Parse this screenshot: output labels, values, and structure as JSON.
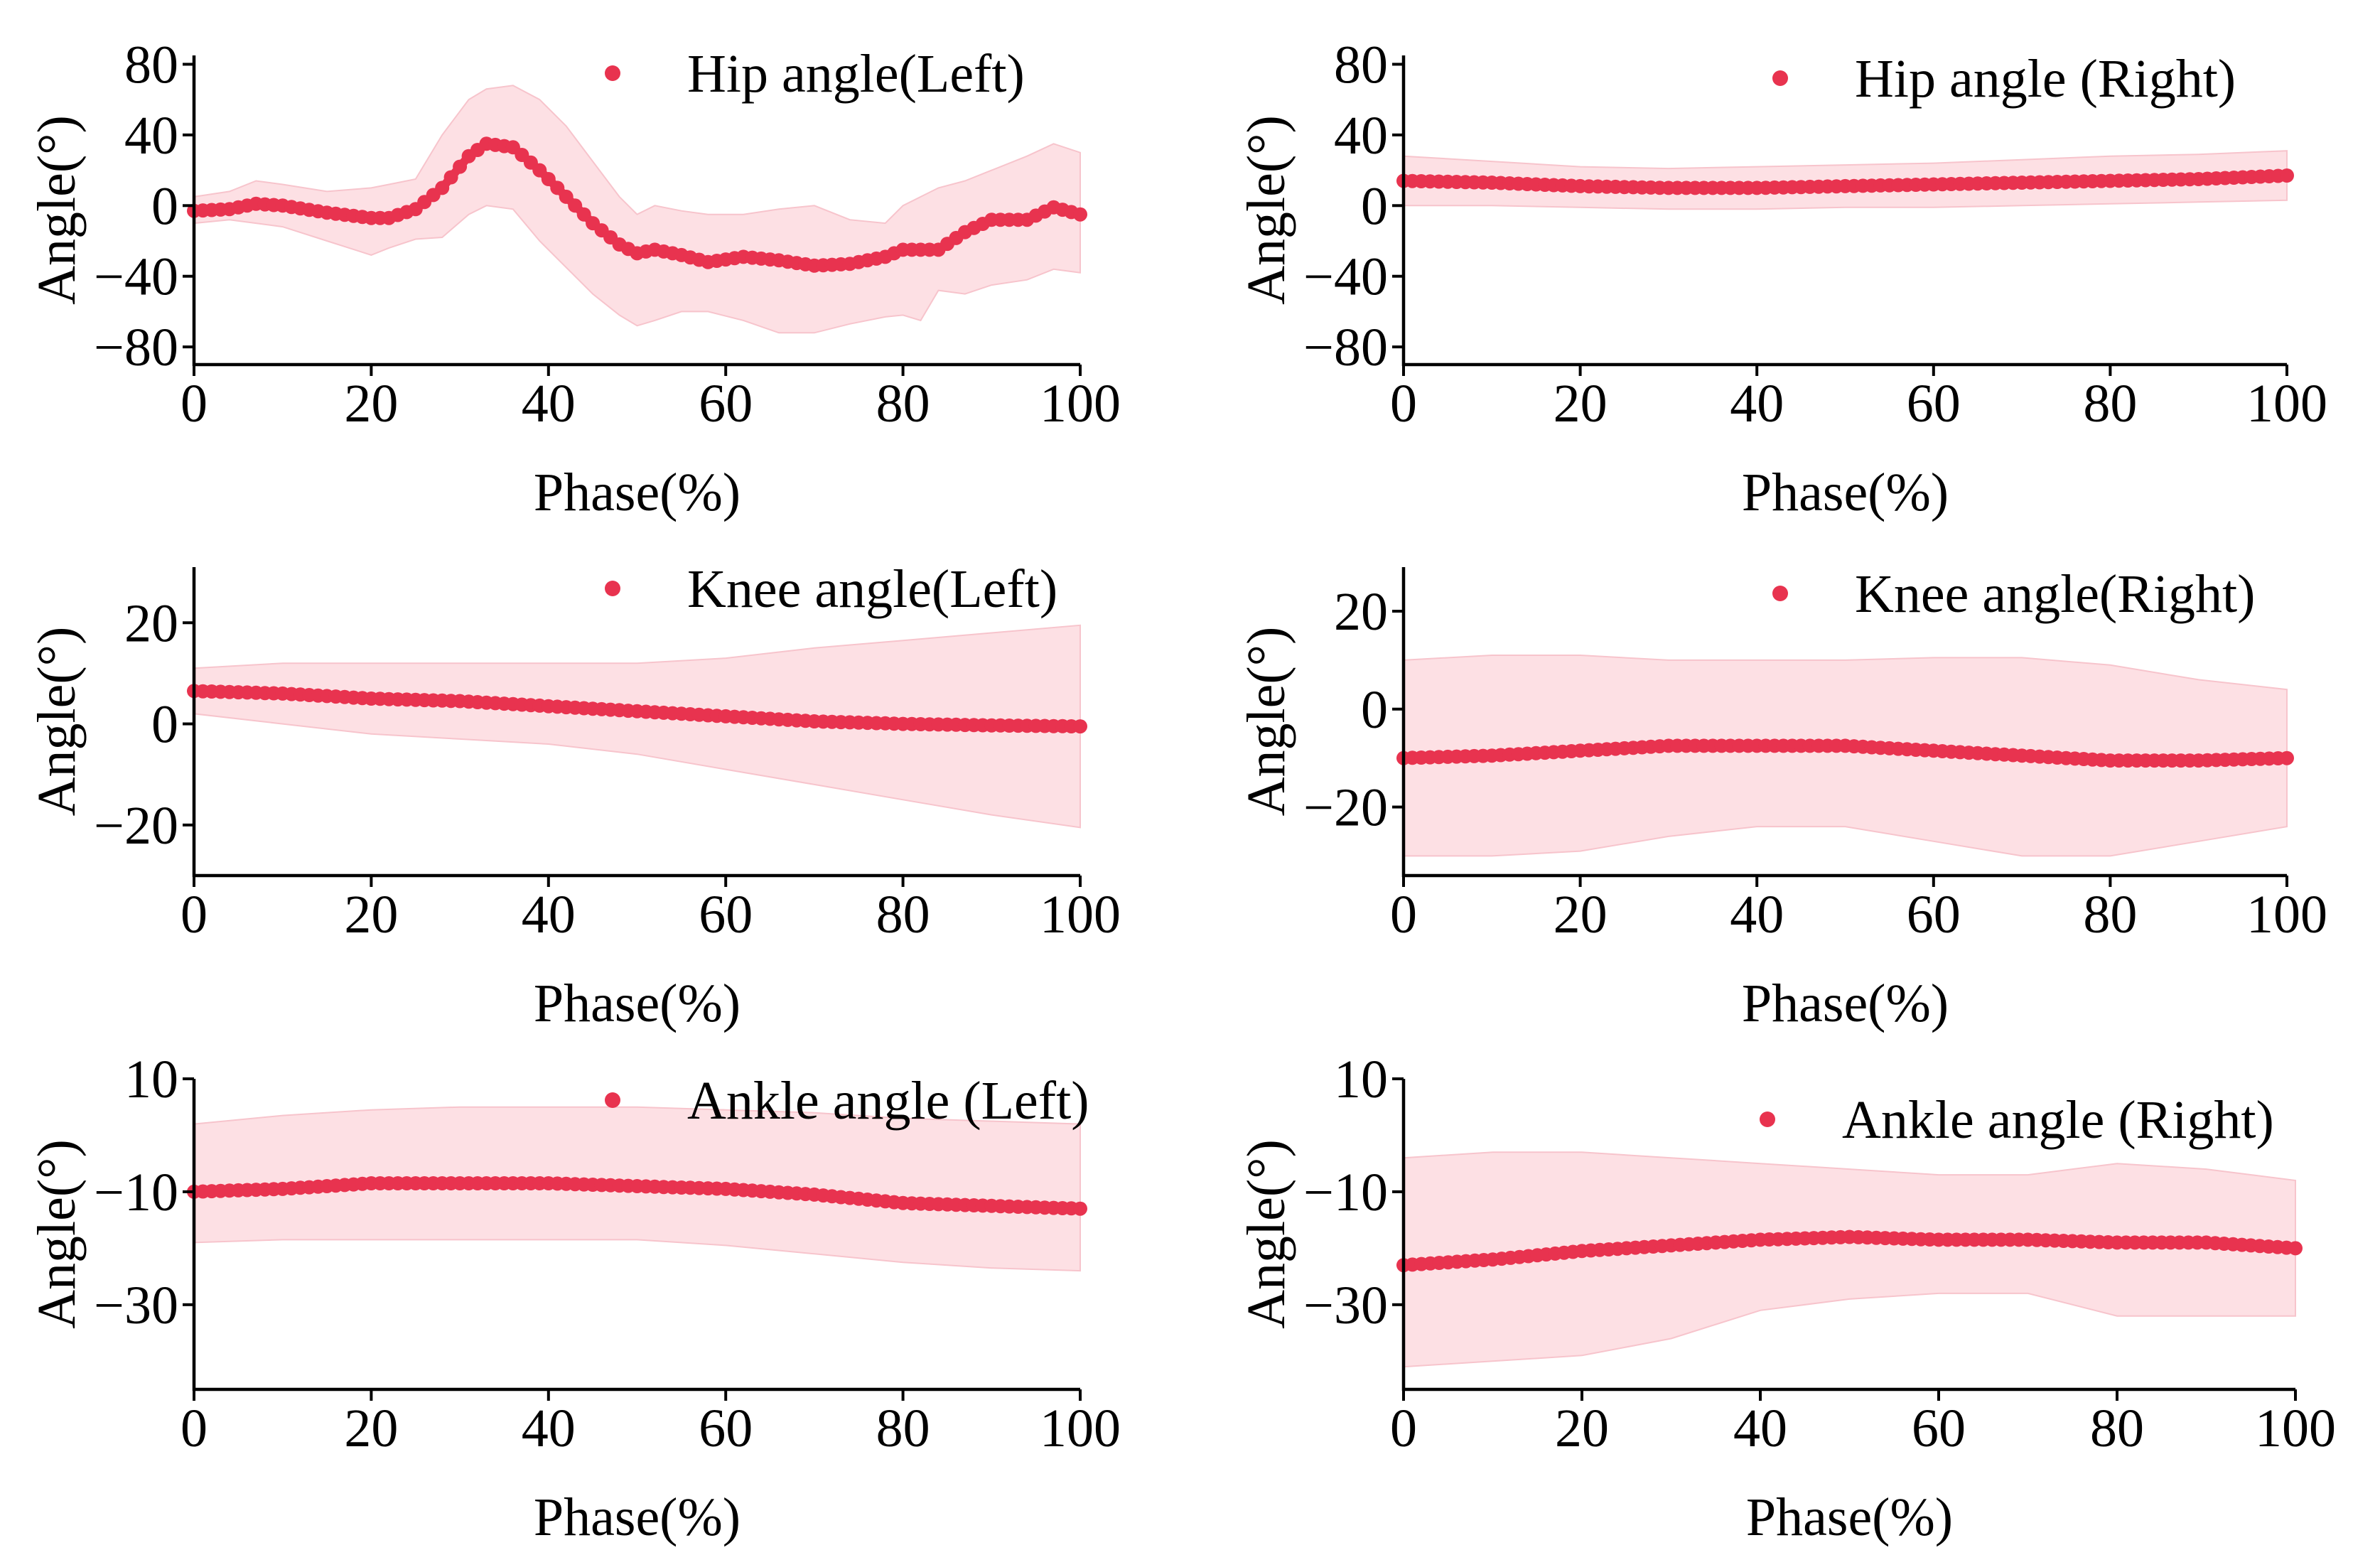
{
  "colors": {
    "series": "#e8334f",
    "band": "#fde0e4"
  },
  "chart_data": [
    {
      "id": "hip-left",
      "type": "line",
      "title": "",
      "legend": "Hip angle(Left)",
      "xlabel": "Phase(%)",
      "ylabel": "Angle(°)",
      "xlim": [
        0,
        100
      ],
      "ylim": [
        -90,
        85
      ],
      "xticks": [
        0,
        20,
        40,
        60,
        80,
        100
      ],
      "xtick_labels": [
        "0",
        "20",
        "40",
        "60",
        "80",
        "100"
      ],
      "yticks": [
        80,
        40,
        0,
        -40,
        -80
      ],
      "ytick_labels": [
        "80",
        "40",
        "0",
        "−40",
        "−80"
      ],
      "series": [
        {
          "name": "Hip angle(Left)",
          "x": [
            0,
            4,
            7,
            10,
            15,
            20,
            22,
            25,
            28,
            31,
            33,
            36,
            39,
            42,
            45,
            48,
            50,
            52,
            55,
            58,
            62,
            66,
            70,
            74,
            78,
            80,
            82,
            84,
            87,
            90,
            94,
            97,
            100
          ],
          "mean": [
            -3,
            -2,
            1,
            0,
            -4,
            -7,
            -7,
            -2,
            10,
            28,
            35,
            33,
            20,
            5,
            -10,
            -22,
            -27,
            -25,
            -28,
            -32,
            -29,
            -31,
            -34,
            -33,
            -29,
            -25,
            -25,
            -25,
            -15,
            -8,
            -8,
            -1,
            -5
          ],
          "upper": [
            5,
            8,
            14,
            12,
            8,
            10,
            12,
            15,
            40,
            60,
            66,
            68,
            60,
            45,
            25,
            5,
            -5,
            0,
            -3,
            -5,
            -5,
            -2,
            0,
            -8,
            -10,
            0,
            5,
            10,
            14,
            20,
            28,
            35,
            30
          ],
          "lower": [
            -10,
            -8,
            -10,
            -12,
            -20,
            -28,
            -24,
            -19,
            -18,
            -5,
            0,
            -2,
            -20,
            -35,
            -50,
            -62,
            -68,
            -65,
            -60,
            -60,
            -65,
            -72,
            -72,
            -67,
            -63,
            -62,
            -65,
            -48,
            -50,
            -45,
            -42,
            -36,
            -38
          ]
        }
      ]
    },
    {
      "id": "hip-right",
      "type": "line",
      "title": "",
      "legend": "Hip angle (Right)",
      "xlabel": "Phase(%)",
      "ylabel": "Angle(°)",
      "xlim": [
        0,
        100
      ],
      "ylim": [
        -90,
        85
      ],
      "xticks": [
        0,
        20,
        40,
        60,
        80,
        100
      ],
      "xtick_labels": [
        "0",
        "20",
        "40",
        "60",
        "80",
        "100"
      ],
      "yticks": [
        80,
        40,
        0,
        -40,
        -80
      ],
      "ytick_labels": [
        "80",
        "40",
        "0",
        "−40",
        "−80"
      ],
      "series": [
        {
          "name": "Hip angle (Right)",
          "x": [
            0,
            10,
            20,
            30,
            40,
            50,
            60,
            70,
            80,
            90,
            100
          ],
          "mean": [
            14,
            13,
            11,
            10,
            10,
            11,
            12,
            13,
            14,
            15,
            17
          ],
          "upper": [
            28,
            25,
            22,
            21,
            22,
            23,
            24,
            26,
            28,
            29,
            31
          ],
          "lower": [
            0,
            0,
            -1,
            -2,
            -2,
            -1,
            -1,
            0,
            1,
            2,
            3
          ]
        }
      ]
    },
    {
      "id": "knee-left",
      "type": "line",
      "title": "",
      "legend": "Knee angle(Left)",
      "xlabel": "Phase(%)",
      "ylabel": "Angle(°)",
      "xlim": [
        0,
        100
      ],
      "ylim": [
        -30,
        31
      ],
      "xticks": [
        0,
        20,
        40,
        60,
        80,
        100
      ],
      "xtick_labels": [
        "0",
        "20",
        "40",
        "60",
        "80",
        "100"
      ],
      "yticks": [
        20,
        0,
        -20
      ],
      "ytick_labels": [
        "20",
        "0",
        "−20"
      ],
      "series": [
        {
          "name": "Knee angle(Left)",
          "x": [
            0,
            10,
            20,
            30,
            40,
            50,
            60,
            70,
            80,
            90,
            100
          ],
          "mean": [
            6.5,
            6,
            5,
            4.5,
            3.5,
            2.5,
            1.5,
            0.5,
            0,
            -0.3,
            -0.5
          ],
          "upper": [
            11,
            12,
            12,
            12,
            12,
            12,
            13,
            15,
            16.5,
            18,
            19.5
          ],
          "lower": [
            2,
            0,
            -2,
            -3,
            -4,
            -6,
            -9,
            -12,
            -15,
            -18,
            -20.5
          ]
        }
      ]
    },
    {
      "id": "knee-right",
      "type": "line",
      "title": "",
      "legend": "Knee angle(Right)",
      "xlabel": "Phase(%)",
      "ylabel": "Angle(°)",
      "xlim": [
        0,
        100
      ],
      "ylim": [
        -34,
        29
      ],
      "xticks": [
        0,
        20,
        40,
        60,
        80,
        100
      ],
      "xtick_labels": [
        "0",
        "20",
        "40",
        "60",
        "80",
        "100"
      ],
      "yticks": [
        20,
        0,
        -20
      ],
      "ytick_labels": [
        "20",
        "0",
        "−20"
      ],
      "series": [
        {
          "name": "Knee angle(Right)",
          "x": [
            0,
            10,
            20,
            30,
            40,
            50,
            60,
            70,
            80,
            90,
            100
          ],
          "mean": [
            -10,
            -9.5,
            -8.5,
            -7.5,
            -7.5,
            -7.5,
            -8.5,
            -9.5,
            -10.5,
            -10.5,
            -10
          ],
          "upper": [
            10,
            11,
            11,
            10,
            10,
            10,
            10.5,
            10.5,
            9,
            6,
            4
          ],
          "lower": [
            -30,
            -30,
            -29,
            -26,
            -24,
            -24,
            -27,
            -30,
            -30,
            -27,
            -24
          ]
        }
      ]
    },
    {
      "id": "ankle-left",
      "type": "line",
      "title": "",
      "legend": "Ankle angle (Left)",
      "xlabel": "Phase(%)",
      "ylabel": "Angle(°)",
      "xlim": [
        0,
        100
      ],
      "ylim": [
        -45,
        10
      ],
      "xticks": [
        0,
        20,
        40,
        60,
        80,
        100
      ],
      "xtick_labels": [
        "0",
        "20",
        "40",
        "60",
        "80",
        "100"
      ],
      "yticks": [
        10,
        -10,
        -30
      ],
      "ytick_labels": [
        "10",
        "−10",
        "−30"
      ],
      "series": [
        {
          "name": "Ankle angle (Left)",
          "x": [
            0,
            10,
            20,
            30,
            40,
            50,
            60,
            70,
            80,
            90,
            100
          ],
          "mean": [
            -10,
            -9.5,
            -8.5,
            -8.5,
            -8.5,
            -9,
            -9.5,
            -10.5,
            -12,
            -12.5,
            -13
          ],
          "upper": [
            2,
            3.5,
            4.5,
            5,
            5,
            5,
            4.5,
            4,
            3,
            2.5,
            2
          ],
          "lower": [
            -19,
            -18.5,
            -18.5,
            -18.5,
            -18.5,
            -18.5,
            -19.5,
            -21,
            -22.5,
            -23.5,
            -24
          ]
        }
      ]
    },
    {
      "id": "ankle-right",
      "type": "line",
      "title": "",
      "legend": "Ankle angle (Right)",
      "xlabel": "Phase(%)",
      "ylabel": "Angle(°)",
      "xlim": [
        0,
        100
      ],
      "ylim": [
        -45,
        10
      ],
      "xticks": [
        0,
        20,
        40,
        60,
        80,
        100
      ],
      "xtick_labels": [
        "0",
        "20",
        "40",
        "60",
        "80",
        "100"
      ],
      "yticks": [
        10,
        -10,
        -30
      ],
      "ytick_labels": [
        "10",
        "−10",
        "−30"
      ],
      "series": [
        {
          "name": "Ankle angle (Right)",
          "x": [
            0,
            10,
            20,
            30,
            40,
            50,
            60,
            70,
            80,
            90,
            100
          ],
          "mean": [
            -23,
            -22,
            -20.5,
            -19.5,
            -18.5,
            -18,
            -18.5,
            -18.5,
            -19,
            -19,
            -20
          ],
          "upper": [
            -4,
            -3,
            -3,
            -4,
            -5,
            -6,
            -7,
            -7,
            -5,
            -6,
            -8
          ],
          "lower": [
            -41,
            -40,
            -39,
            -36,
            -31,
            -29,
            -28,
            -28,
            -32,
            -32,
            -32
          ]
        }
      ]
    }
  ]
}
